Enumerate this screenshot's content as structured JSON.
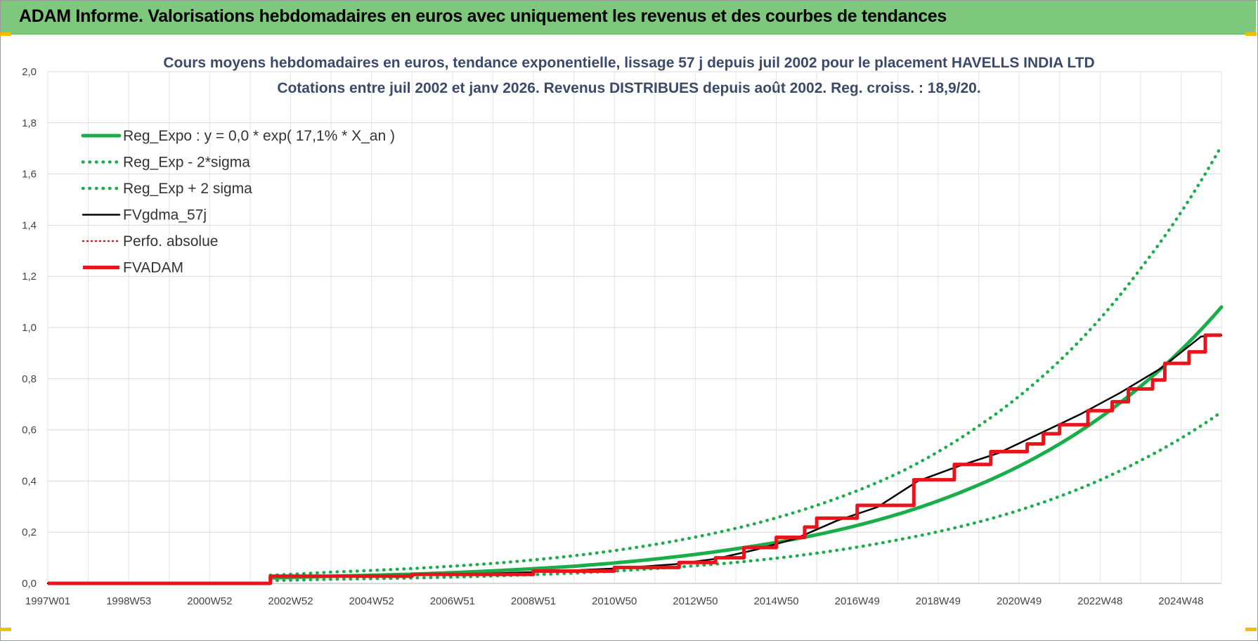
{
  "header": {
    "title": "ADAM Informe. Valorisations hebdomadaires en euros avec uniquement les revenus et des courbes de tendances"
  },
  "colors": {
    "header_bg": "#7ec87e",
    "reg_expo": "#1aae4a",
    "fvgdma": "#000000",
    "fvadam": "#e8131b",
    "perfo": "#e8131b",
    "title": "#3b4a6b"
  },
  "chart_data": {
    "type": "line",
    "title": "Cours moyens hebdomadaires en euros, tendance exponentielle, lissage 57 j depuis juil 2002 pour le placement HAVELLS INDIA LTD",
    "subtitle": "Cotations entre juil 2002 et janv 2026. Revenus DISTRIBUES depuis août 2002. Reg. croiss. : 18,9/20.",
    "xlabel": "",
    "ylabel": "",
    "ylim": [
      0,
      2.0
    ],
    "xlim": [
      1997.0,
      2026.0
    ],
    "y_ticks": [
      "0,0",
      "0,2",
      "0,4",
      "0,6",
      "0,8",
      "1,0",
      "1,2",
      "1,4",
      "1,6",
      "1,8",
      "2,0"
    ],
    "x_ticks": [
      {
        "label": "1997W01",
        "x": 1997.0
      },
      {
        "label": "1998W53",
        "x": 1999.0
      },
      {
        "label": "2000W52",
        "x": 2001.0
      },
      {
        "label": "2002W52",
        "x": 2003.0
      },
      {
        "label": "2004W52",
        "x": 2005.0
      },
      {
        "label": "2006W51",
        "x": 2007.0
      },
      {
        "label": "2008W51",
        "x": 2009.0
      },
      {
        "label": "2010W50",
        "x": 2011.0
      },
      {
        "label": "2012W50",
        "x": 2013.0
      },
      {
        "label": "2014W50",
        "x": 2015.0
      },
      {
        "label": "2016W49",
        "x": 2017.0
      },
      {
        "label": "2018W49",
        "x": 2019.0
      },
      {
        "label": "2020W49",
        "x": 2021.0
      },
      {
        "label": "2022W48",
        "x": 2023.0
      },
      {
        "label": "2024W48",
        "x": 2025.0
      }
    ],
    "grid": true,
    "legend_position": "top-left",
    "series": [
      {
        "name": "Reg_Expo : y = 0,0 * exp( 17,1% *  X_an )",
        "style": "solid",
        "color": "#1aae4a",
        "x": [
          2002.5,
          2004,
          2006,
          2008,
          2010,
          2012,
          2014,
          2016,
          2018,
          2020,
          2022,
          2024,
          2026
        ],
        "y": [
          0.021,
          0.028,
          0.036,
          0.049,
          0.067,
          0.095,
          0.135,
          0.19,
          0.27,
          0.385,
          0.545,
          0.77,
          1.08
        ]
      },
      {
        "name": "Reg_Exp - 2*sigma",
        "style": "dotted",
        "color": "#1aae4a",
        "x": [
          2002.5,
          2004,
          2006,
          2008,
          2010,
          2012,
          2014,
          2016,
          2018,
          2020,
          2022,
          2024,
          2026
        ],
        "y": [
          0.011,
          0.016,
          0.021,
          0.029,
          0.04,
          0.058,
          0.082,
          0.118,
          0.17,
          0.24,
          0.34,
          0.48,
          0.67
        ]
      },
      {
        "name": "Reg_Exp + 2 sigma",
        "style": "dotted",
        "color": "#1aae4a",
        "x": [
          2002.5,
          2004,
          2006,
          2008,
          2010,
          2012,
          2014,
          2016,
          2018,
          2020,
          2022,
          2024,
          2026
        ],
        "y": [
          0.032,
          0.044,
          0.058,
          0.078,
          0.108,
          0.152,
          0.215,
          0.305,
          0.43,
          0.615,
          0.87,
          1.23,
          1.71
        ]
      },
      {
        "name": "FVgdma_57j",
        "style": "solid",
        "color": "#000000",
        "x": [
          1997.0,
          2002.5,
          2002.5,
          2005,
          2007,
          2009,
          2011,
          2012.5,
          2013.5,
          2014.5,
          2015.5,
          2016.5,
          2017.5,
          2018.5,
          2019.5,
          2020.5,
          2021.5,
          2022.5,
          2023.5,
          2024.5,
          2025.5,
          2026.0
        ],
        "y": [
          0.0,
          0.0,
          0.027,
          0.029,
          0.034,
          0.044,
          0.058,
          0.075,
          0.096,
          0.132,
          0.176,
          0.245,
          0.298,
          0.4,
          0.458,
          0.51,
          0.585,
          0.66,
          0.745,
          0.84,
          0.965,
          0.97
        ]
      },
      {
        "name": "Perfo. absolue",
        "style": "dotted",
        "color": "#e8131b",
        "x": [
          1997.0,
          2002.5,
          2002.5,
          2026.0
        ],
        "y": [
          0.0,
          0.0,
          0.027,
          0.97
        ]
      },
      {
        "name": "FVADAM",
        "style": "solid",
        "color": "#e8131b",
        "x": [
          1997.0,
          2002.5,
          2002.5,
          2006,
          2006,
          2009,
          2009,
          2011,
          2011,
          2012.6,
          2012.6,
          2013.5,
          2013.5,
          2014.2,
          2014.2,
          2015.0,
          2015.0,
          2015.7,
          2015.7,
          2016.0,
          2016.0,
          2017.0,
          2017.0,
          2018.4,
          2018.4,
          2019.4,
          2019.4,
          2020.3,
          2020.3,
          2021.2,
          2021.2,
          2021.6,
          2021.6,
          2022.0,
          2022.0,
          2022.7,
          2022.7,
          2023.3,
          2023.3,
          2023.7,
          2023.7,
          2024.3,
          2024.3,
          2024.6,
          2024.6,
          2025.2,
          2025.2,
          2025.6,
          2025.6,
          2026.0
        ],
        "y": [
          0.0,
          0.0,
          0.028,
          0.028,
          0.035,
          0.035,
          0.048,
          0.048,
          0.062,
          0.062,
          0.082,
          0.082,
          0.1,
          0.1,
          0.14,
          0.14,
          0.18,
          0.18,
          0.22,
          0.22,
          0.255,
          0.255,
          0.305,
          0.305,
          0.405,
          0.405,
          0.465,
          0.465,
          0.515,
          0.515,
          0.545,
          0.545,
          0.585,
          0.585,
          0.62,
          0.62,
          0.675,
          0.675,
          0.71,
          0.71,
          0.76,
          0.76,
          0.795,
          0.795,
          0.86,
          0.86,
          0.905,
          0.905,
          0.97,
          0.97
        ]
      }
    ]
  }
}
